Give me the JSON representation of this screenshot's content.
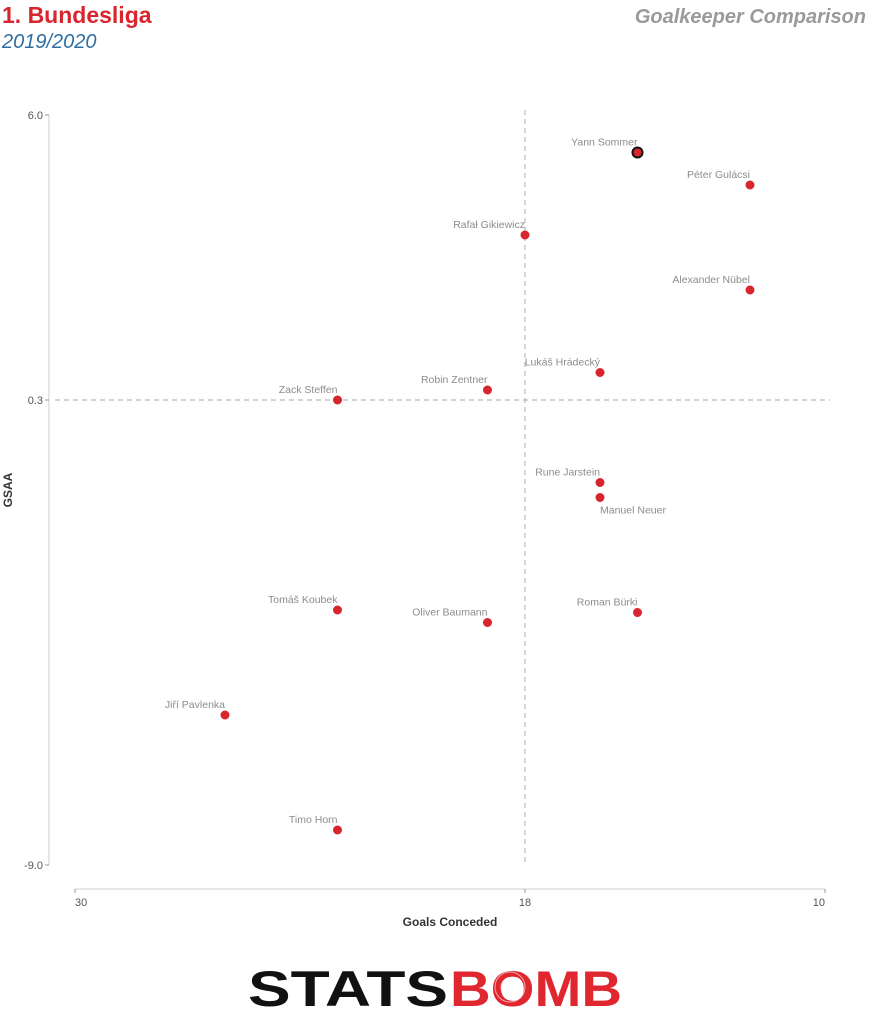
{
  "header": {
    "league": "1. Bundesliga",
    "season": "2019/2020",
    "subtitle": "Goalkeeper Comparison"
  },
  "colors": {
    "point": "#d7262e",
    "highlight_outline": "#111111",
    "league": "#d7262e",
    "season": "#2f6ea3",
    "gridline": "#bbbbbb"
  },
  "chart_data": {
    "type": "scatter",
    "xlabel": "Goals Conceded",
    "ylabel": "GSAA",
    "xlim": [
      30,
      10
    ],
    "ylim": [
      -9.0,
      6.0
    ],
    "x_reversed": true,
    "xticks": [
      30,
      18,
      10
    ],
    "xtick_labels": [
      "30",
      "18",
      "10"
    ],
    "yticks": [
      6.0,
      0.3,
      -9.0
    ],
    "ytick_labels": [
      "6.0",
      "0.3",
      "-9.0"
    ],
    "reference_lines": {
      "x": 18,
      "y": 0.3
    },
    "grid": false,
    "highlighted": "Yann Sommer",
    "points": [
      {
        "name": "Yann Sommer",
        "x": 15,
        "y": 5.25
      },
      {
        "name": "Péter Gulácsi",
        "x": 12,
        "y": 4.6
      },
      {
        "name": "Rafał Gikiewicz",
        "x": 18,
        "y": 3.6
      },
      {
        "name": "Alexander Nübel",
        "x": 12,
        "y": 2.5
      },
      {
        "name": "Lukáš Hrádecký",
        "x": 16,
        "y": 0.85
      },
      {
        "name": "Robin Zentner",
        "x": 19,
        "y": 0.5
      },
      {
        "name": "Zack Steffen",
        "x": 23,
        "y": 0.3
      },
      {
        "name": "Rune Jarstein",
        "x": 16,
        "y": -1.35
      },
      {
        "name": "Manuel Neuer",
        "x": 16,
        "y": -1.65
      },
      {
        "name": "Tomáš Koubek",
        "x": 23,
        "y": -3.9
      },
      {
        "name": "Roman Bürki",
        "x": 15,
        "y": -3.95
      },
      {
        "name": "Oliver Baumann",
        "x": 19,
        "y": -4.15
      },
      {
        "name": "Jiří Pavlenka",
        "x": 26,
        "y": -6.0
      },
      {
        "name": "Timo Horn",
        "x": 23,
        "y": -8.3
      }
    ]
  },
  "logo": {
    "part1": "STATS",
    "part2": "BOMB"
  }
}
